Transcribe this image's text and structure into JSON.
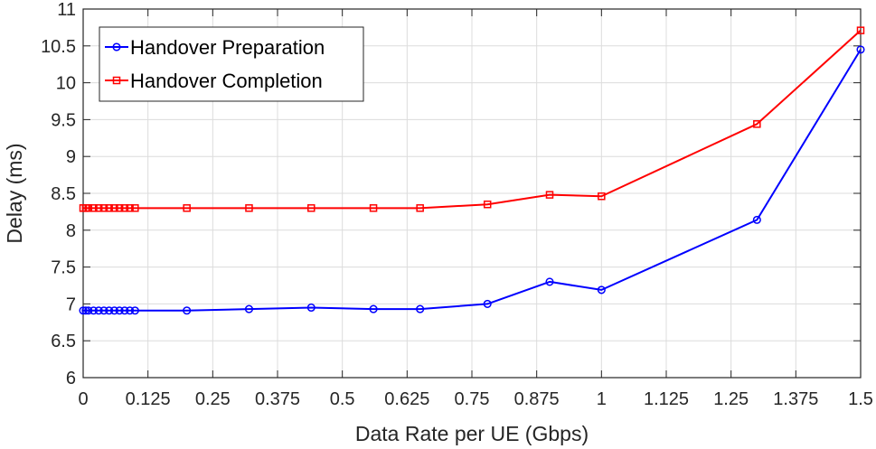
{
  "chart_data": {
    "type": "line",
    "xlabel": "Data Rate per UE (Gbps)",
    "ylabel": "Delay (ms)",
    "xlim": [
      0,
      1.5
    ],
    "ylim": [
      6,
      11
    ],
    "xticks": [
      0,
      0.125,
      0.25,
      0.375,
      0.5,
      0.625,
      0.75,
      0.875,
      1,
      1.125,
      1.25,
      1.375,
      1.5
    ],
    "xtick_labels": [
      "0",
      "0.125",
      "0.25",
      "0.375",
      "0.5",
      "0.625",
      "0.75",
      "0.875",
      "1",
      "1.125",
      "1.25",
      "1.375",
      "1.5"
    ],
    "yticks": [
      6,
      6.5,
      7,
      7.5,
      8,
      8.5,
      9,
      9.5,
      10,
      10.5,
      11
    ],
    "ytick_labels": [
      "6",
      "6.5",
      "7",
      "7.5",
      "8",
      "8.5",
      "9",
      "9.5",
      "10",
      "10.5",
      "11"
    ],
    "grid": true,
    "legend_position": "top-left",
    "series": [
      {
        "name": "Handover Preparation",
        "color": "#0000ff",
        "marker": "circle",
        "x": [
          0,
          0.005,
          0.01,
          0.02,
          0.03,
          0.04,
          0.05,
          0.06,
          0.07,
          0.08,
          0.09,
          0.1,
          0.2,
          0.32,
          0.44,
          0.56,
          0.65,
          0.78,
          0.9,
          1.0,
          1.3,
          1.5
        ],
        "y": [
          6.91,
          6.91,
          6.91,
          6.91,
          6.91,
          6.91,
          6.91,
          6.91,
          6.91,
          6.91,
          6.91,
          6.91,
          6.91,
          6.93,
          6.95,
          6.93,
          6.93,
          7.0,
          7.3,
          7.19,
          8.14,
          10.45
        ]
      },
      {
        "name": "Handover Completion",
        "color": "#ff0000",
        "marker": "square",
        "x": [
          0,
          0.005,
          0.01,
          0.02,
          0.03,
          0.04,
          0.05,
          0.06,
          0.07,
          0.08,
          0.09,
          0.1,
          0.2,
          0.32,
          0.44,
          0.56,
          0.65,
          0.78,
          0.9,
          1.0,
          1.3,
          1.5
        ],
        "y": [
          8.3,
          8.3,
          8.3,
          8.3,
          8.3,
          8.3,
          8.3,
          8.3,
          8.3,
          8.3,
          8.3,
          8.3,
          8.3,
          8.3,
          8.3,
          8.3,
          8.3,
          8.35,
          8.48,
          8.46,
          9.44,
          10.71
        ]
      }
    ]
  }
}
